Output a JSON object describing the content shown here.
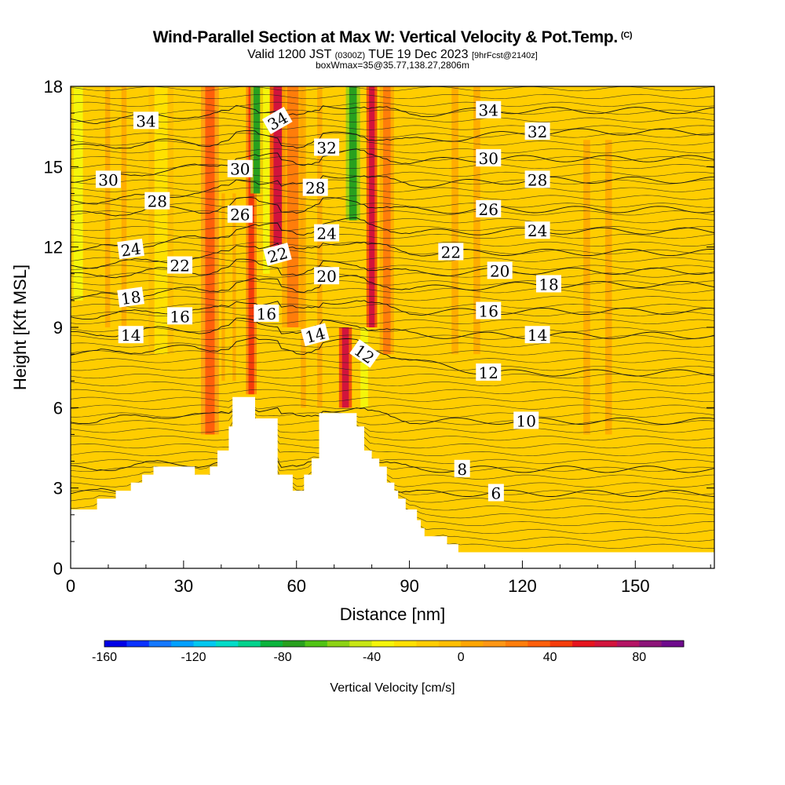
{
  "header": {
    "title": "Wind-Parallel Section at Max W: Vertical Velocity & Pot.Temp.",
    "title_mark": "(C)",
    "valid_prefix": "Valid 1200 JST",
    "valid_utc": "(0300Z)",
    "valid_date": "TUE 19 Dec 2023",
    "forecast_info": "[9hrFcst@2140z]",
    "box_info": "boxWmax=35@35.77,138.27,2806m"
  },
  "chart_data": {
    "type": "heatmap",
    "xlabel": "Distance [nm]",
    "ylabel": "Height [Kft MSL]",
    "xlim": [
      0,
      171
    ],
    "ylim": [
      0,
      18
    ],
    "x_ticks": [
      0,
      30,
      60,
      90,
      120,
      150
    ],
    "y_ticks": [
      0,
      3,
      6,
      9,
      12,
      15,
      18
    ],
    "grid": false,
    "colorbar": {
      "label": "Vertical Velocity [cm/s]",
      "min": -160,
      "max": 100,
      "step": 10,
      "tick_values": [
        -160,
        -120,
        -80,
        -40,
        0,
        40,
        80
      ],
      "colors": [
        "#0000e6",
        "#0a32ff",
        "#1478ff",
        "#00a0ff",
        "#00c8f0",
        "#00dcc8",
        "#00d28c",
        "#0ab43c",
        "#28a01e",
        "#50c314",
        "#8cd214",
        "#c8e614",
        "#f5f50a",
        "#ffe100",
        "#ffcd00",
        "#ffbe00",
        "#ffa500",
        "#ff9614",
        "#ff7d0a",
        "#ff5f0a",
        "#f53c0a",
        "#e6141e",
        "#d2143c",
        "#b41464",
        "#8c1478",
        "#6e0a8c"
      ]
    },
    "terrain_profile": {
      "x": [
        0,
        5,
        7,
        10,
        12,
        15,
        16,
        18,
        19,
        20,
        22,
        24,
        26,
        28,
        30,
        33,
        36,
        37,
        39,
        40,
        42,
        43,
        48,
        49,
        50,
        52,
        53,
        55,
        56,
        57,
        58,
        59,
        61,
        62,
        63,
        64,
        65,
        66,
        67,
        68,
        70,
        72,
        73,
        75,
        76,
        77,
        78,
        79,
        80,
        81,
        82,
        84,
        86,
        87,
        88,
        89,
        90,
        92,
        93,
        94,
        95,
        96,
        97,
        98,
        99,
        100,
        101,
        103,
        143,
        143.5,
        145,
        147,
        153,
        155,
        156,
        157,
        158,
        160,
        162,
        165,
        167,
        169,
        171
      ],
      "height_kft": [
        2.2,
        2.2,
        2.6,
        2.6,
        2.9,
        2.9,
        3.2,
        3.2,
        3.5,
        3.5,
        3.8,
        3.8,
        3.8,
        3.8,
        3.8,
        3.5,
        3.5,
        3.8,
        4.4,
        4.4,
        5.3,
        6.4,
        6.4,
        5.6,
        5.6,
        5.6,
        5.6,
        3.5,
        3.5,
        3.5,
        3.5,
        2.9,
        2.9,
        3.5,
        3.5,
        4.1,
        4.1,
        5.8,
        5.8,
        5.8,
        5.8,
        5.8,
        5.8,
        5.8,
        5.3,
        5.3,
        4.4,
        4.4,
        4.1,
        4.1,
        3.8,
        3.2,
        2.9,
        2.6,
        2.6,
        2.2,
        2.2,
        1.8,
        1.5,
        1.2,
        1.2,
        1.2,
        1.2,
        1.2,
        1.2,
        0.9,
        0.9,
        0.6,
        0.6,
        0.6,
        0.6,
        0.6,
        0.6,
        0.6,
        0.6,
        0.6,
        0.6,
        0.6,
        0.6,
        0.6,
        0.6,
        0.6,
        0.6
      ]
    },
    "velocity_features": [
      {
        "x": 2,
        "z_bottom": 10,
        "z_top": 18,
        "value": -40,
        "width_nm": 2.5
      },
      {
        "x": 12,
        "z_bottom": 9,
        "z_top": 18,
        "value": -20,
        "width_nm": 3
      },
      {
        "x": 24,
        "z_bottom": 8,
        "z_top": 18,
        "value": -30,
        "width_nm": 3.5
      },
      {
        "x": 37,
        "z_bottom": 5,
        "z_top": 18,
        "value": 35,
        "width_nm": 2.5
      },
      {
        "x": 42,
        "z_bottom": 7,
        "z_top": 14,
        "value": -20,
        "width_nm": 2
      },
      {
        "x": 48,
        "z_bottom": 6.5,
        "z_top": 18,
        "value": 40,
        "width_nm": 1.5
      },
      {
        "x": 49.5,
        "z_bottom": 14,
        "z_top": 18,
        "value": -80,
        "width_nm": 1.8
      },
      {
        "x": 52,
        "z_bottom": 11,
        "z_top": 18,
        "value": -40,
        "width_nm": 1.8
      },
      {
        "x": 55,
        "z_bottom": 12,
        "z_top": 18,
        "value": 60,
        "width_nm": 2.2
      },
      {
        "x": 59,
        "z_bottom": 9,
        "z_top": 18,
        "value": 20,
        "width_nm": 3
      },
      {
        "x": 64,
        "z_bottom": 6,
        "z_top": 18,
        "value": -20,
        "width_nm": 3
      },
      {
        "x": 73,
        "z_bottom": 6,
        "z_top": 9,
        "value": 60,
        "width_nm": 1.8
      },
      {
        "x": 75,
        "z_bottom": 13,
        "z_top": 18,
        "value": -80,
        "width_nm": 2
      },
      {
        "x": 78,
        "z_bottom": 6,
        "z_top": 9,
        "value": -40,
        "width_nm": 2
      },
      {
        "x": 80,
        "z_bottom": 9,
        "z_top": 18,
        "value": 60,
        "width_nm": 1.5
      },
      {
        "x": 84,
        "z_bottom": 8,
        "z_top": 18,
        "value": 20,
        "width_nm": 2
      },
      {
        "x": 105,
        "z_bottom": 8,
        "z_top": 18,
        "value": -20,
        "width_nm": 4
      },
      {
        "x": 140,
        "z_bottom": 5,
        "z_top": 16,
        "value": -15,
        "width_nm": 4
      }
    ],
    "theta_contours": {
      "units_label": "Pot.Temp.",
      "labels": [
        {
          "value": "34",
          "x": 20,
          "z": 16.7,
          "angle": 0
        },
        {
          "value": "34",
          "x": 55,
          "z": 16.7,
          "angle": -30
        },
        {
          "value": "34",
          "x": 111,
          "z": 17.1,
          "angle": 0
        },
        {
          "value": "32",
          "x": 68,
          "z": 15.7,
          "angle": 0
        },
        {
          "value": "32",
          "x": 124,
          "z": 16.3,
          "angle": 0
        },
        {
          "value": "30",
          "x": 10,
          "z": 14.5,
          "angle": 0
        },
        {
          "value": "30",
          "x": 45,
          "z": 14.9,
          "angle": 0
        },
        {
          "value": "30",
          "x": 111,
          "z": 15.3,
          "angle": 0
        },
        {
          "value": "28",
          "x": 23,
          "z": 13.7,
          "angle": 0
        },
        {
          "value": "28",
          "x": 65,
          "z": 14.2,
          "angle": 0
        },
        {
          "value": "28",
          "x": 124,
          "z": 14.5,
          "angle": 0
        },
        {
          "value": "26",
          "x": 45,
          "z": 13.2,
          "angle": 0
        },
        {
          "value": "26",
          "x": 111,
          "z": 13.4,
          "angle": 0
        },
        {
          "value": "24",
          "x": 16,
          "z": 11.9,
          "angle": -8
        },
        {
          "value": "24",
          "x": 68,
          "z": 12.5,
          "angle": 0
        },
        {
          "value": "24",
          "x": 124,
          "z": 12.6,
          "angle": 0
        },
        {
          "value": "22",
          "x": 29,
          "z": 11.3,
          "angle": 0
        },
        {
          "value": "22",
          "x": 55,
          "z": 11.7,
          "angle": -15
        },
        {
          "value": "22",
          "x": 101,
          "z": 11.8,
          "angle": 0
        },
        {
          "value": "20",
          "x": 68,
          "z": 10.9,
          "angle": 0
        },
        {
          "value": "20",
          "x": 114,
          "z": 11.1,
          "angle": 0
        },
        {
          "value": "18",
          "x": 16,
          "z": 10.1,
          "angle": -8
        },
        {
          "value": "18",
          "x": 127,
          "z": 10.6,
          "angle": 0
        },
        {
          "value": "16",
          "x": 29,
          "z": 9.4,
          "angle": 0
        },
        {
          "value": "16",
          "x": 52,
          "z": 9.5,
          "angle": 0
        },
        {
          "value": "16",
          "x": 111,
          "z": 9.6,
          "angle": 0
        },
        {
          "value": "14",
          "x": 16,
          "z": 8.7,
          "angle": 0
        },
        {
          "value": "14",
          "x": 65,
          "z": 8.7,
          "angle": -15
        },
        {
          "value": "14",
          "x": 124,
          "z": 8.7,
          "angle": 0
        },
        {
          "value": "12",
          "x": 78,
          "z": 8.0,
          "angle": 35
        },
        {
          "value": "12",
          "x": 111,
          "z": 7.3,
          "angle": 0
        },
        {
          "value": "10",
          "x": 121,
          "z": 5.5,
          "angle": 0
        },
        {
          "value": "8",
          "x": 104,
          "z": 3.7,
          "angle": 0
        },
        {
          "value": "6",
          "x": 113,
          "z": 2.8,
          "angle": 0
        }
      ]
    }
  }
}
